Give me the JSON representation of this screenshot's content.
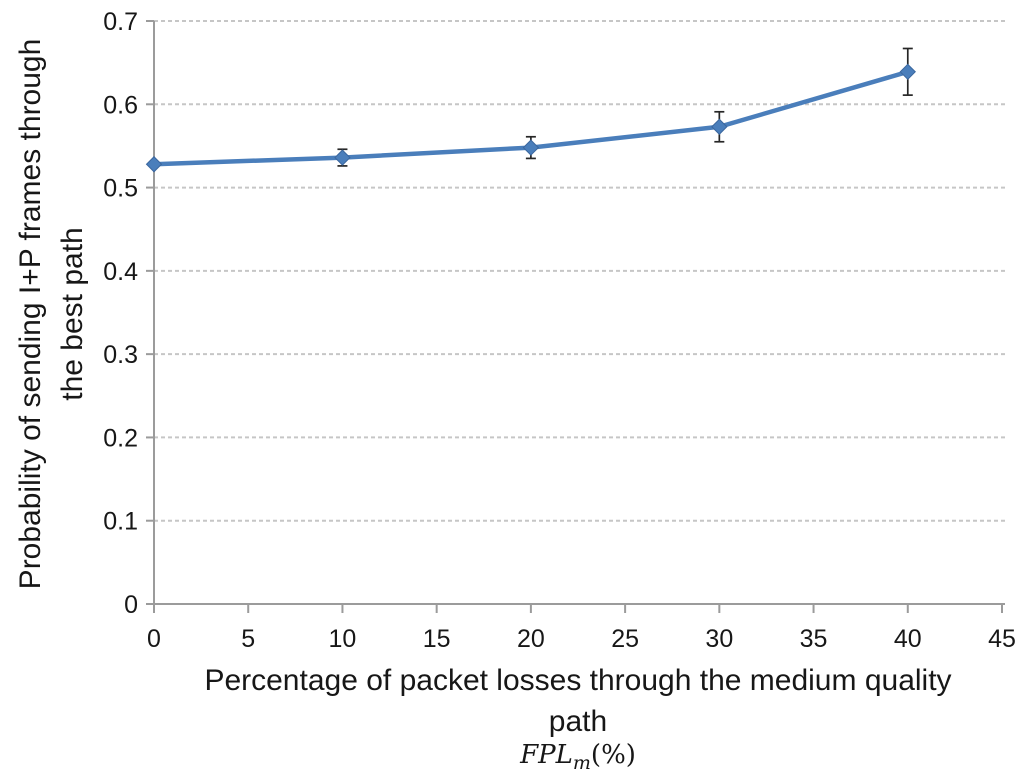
{
  "chart_data": {
    "type": "line",
    "x": [
      0,
      10,
      20,
      30,
      40
    ],
    "y": [
      0.528,
      0.536,
      0.548,
      0.573,
      0.639
    ],
    "y_err": [
      0.002,
      0.01,
      0.013,
      0.018,
      0.028
    ],
    "xlabel_line1": "Percentage of packet losses through the medium quality",
    "xlabel_line2": "path",
    "xlabel_math": {
      "base": "FPL",
      "sub": "m",
      "rest": "(%)"
    },
    "ylabel_line1": "Probability of sending I+P frames through",
    "ylabel_line2": "the best path",
    "xlim": [
      0,
      45
    ],
    "ylim": [
      0,
      0.7
    ],
    "xticks": [
      0,
      5,
      10,
      15,
      20,
      25,
      30,
      35,
      40,
      45
    ],
    "yticks": [
      0,
      0.1,
      0.2,
      0.3,
      0.4,
      0.5,
      0.6,
      0.7
    ],
    "grid": "horizontal-dashed",
    "legend": "none",
    "marker": "diamond",
    "line_color": "#4a7ebb",
    "marker_stroke_color": "#3a669e",
    "error_bar_color": "#262626",
    "axis_color": "#9b9b9b",
    "grid_color": "#c6c6c6",
    "text_color": "#171717"
  }
}
